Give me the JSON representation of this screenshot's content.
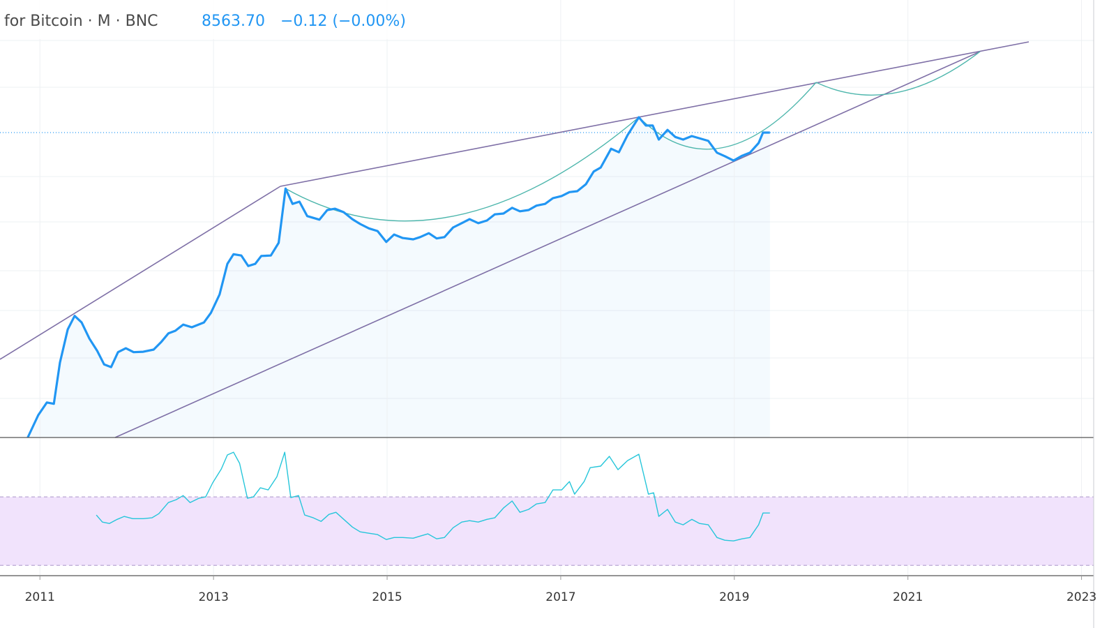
{
  "header": {
    "title": "for Bitcoin · M · BNC",
    "last": "8563.70",
    "change": "−0.12 (−0.00%)"
  },
  "chart_data": [
    {
      "type": "line",
      "color": "#2196f3",
      "fill": true,
      "xlim": [
        2010.54,
        2023.14
      ],
      "ylim": [
        0,
        100
      ],
      "x": [
        2010.86,
        2010.98,
        2011.08,
        2011.16,
        2011.23,
        2011.32,
        2011.4,
        2011.48,
        2011.57,
        2011.66,
        2011.74,
        2011.82,
        2011.9,
        2011.99,
        2012.08,
        2012.19,
        2012.31,
        2012.4,
        2012.48,
        2012.56,
        2012.65,
        2012.75,
        2012.89,
        2012.97,
        2013.07,
        2013.16,
        2013.23,
        2013.32,
        2013.4,
        2013.48,
        2013.55,
        2013.66,
        2013.75,
        2013.83,
        2013.91,
        2013.99,
        2014.08,
        2014.22,
        2014.31,
        2014.4,
        2014.5,
        2014.6,
        2014.69,
        2014.79,
        2014.89,
        2014.99,
        2015.08,
        2015.18,
        2015.3,
        2015.38,
        2015.48,
        2015.57,
        2015.66,
        2015.76,
        2015.86,
        2015.95,
        2016.05,
        2016.15,
        2016.24,
        2016.34,
        2016.44,
        2016.53,
        2016.63,
        2016.72,
        2016.82,
        2016.91,
        2017.01,
        2017.1,
        2017.19,
        2017.29,
        2017.38,
        2017.46,
        2017.58,
        2017.67,
        2017.77,
        2017.9,
        2017.98,
        2018.06,
        2018.13,
        2018.23,
        2018.32,
        2018.41,
        2018.51,
        2018.7,
        2018.8,
        2018.89,
        2018.99,
        2019.09,
        2019.18,
        2019.28,
        2019.33,
        2019.41
      ],
      "values": [
        0.0,
        5.1,
        8.0,
        7.7,
        17.1,
        24.7,
        27.8,
        26.3,
        22.6,
        19.8,
        16.7,
        16.1,
        19.5,
        20.4,
        19.5,
        19.6,
        20.1,
        21.9,
        23.8,
        24.4,
        25.8,
        25.2,
        26.3,
        28.5,
        32.7,
        39.7,
        41.9,
        41.6,
        39.2,
        39.7,
        41.5,
        41.6,
        44.5,
        56.9,
        53.4,
        53.9,
        50.6,
        49.8,
        52.0,
        52.3,
        51.5,
        49.9,
        48.8,
        47.8,
        47.2,
        44.7,
        46.4,
        45.6,
        45.3,
        45.8,
        46.7,
        45.5,
        45.8,
        48.0,
        49.0,
        49.9,
        49.0,
        49.6,
        51.0,
        51.2,
        52.5,
        51.7,
        52.0,
        53.0,
        53.4,
        54.7,
        55.2,
        56.1,
        56.3,
        57.9,
        60.8,
        61.7,
        66.0,
        65.2,
        69.1,
        73.2,
        71.3,
        71.3,
        68.1,
        70.3,
        68.7,
        68.1,
        68.9,
        67.8,
        65.1,
        64.3,
        63.3,
        64.4,
        65.1,
        67.3,
        69.7,
        69.7
      ]
    },
    {
      "type": "line",
      "color": "#26c6da",
      "xlim": [
        2010.54,
        2023.14
      ],
      "ylim": [
        24,
        104.7
      ],
      "bands": [
        30,
        70
      ],
      "band_color": "#f1e3fc",
      "xticks": [
        2011,
        2013,
        2015,
        2017,
        2019,
        2021,
        2023
      ],
      "x": [
        2011.65,
        2011.72,
        2011.8,
        2011.89,
        2011.97,
        2012.07,
        2012.19,
        2012.29,
        2012.37,
        2012.48,
        2012.57,
        2012.65,
        2012.73,
        2012.83,
        2012.91,
        2012.99,
        2013.09,
        2013.16,
        2013.23,
        2013.3,
        2013.39,
        2013.46,
        2013.54,
        2013.63,
        2013.73,
        2013.82,
        2013.89,
        2013.98,
        2014.05,
        2014.15,
        2014.24,
        2014.33,
        2014.41,
        2014.51,
        2014.6,
        2014.69,
        2014.79,
        2014.89,
        2014.99,
        2015.08,
        2015.18,
        2015.3,
        2015.38,
        2015.47,
        2015.57,
        2015.66,
        2015.76,
        2015.86,
        2015.95,
        2016.05,
        2016.15,
        2016.24,
        2016.34,
        2016.44,
        2016.53,
        2016.63,
        2016.72,
        2016.82,
        2016.91,
        2017.01,
        2017.1,
        2017.16,
        2017.27,
        2017.34,
        2017.46,
        2017.56,
        2017.66,
        2017.77,
        2017.9,
        2018.01,
        2018.07,
        2018.13,
        2018.23,
        2018.32,
        2018.41,
        2018.51,
        2018.6,
        2018.7,
        2018.8,
        2018.89,
        2018.99,
        2019.09,
        2019.18,
        2019.28,
        2019.33,
        2019.41
      ],
      "values": [
        59.4,
        55.3,
        54.5,
        56.9,
        58.6,
        57.3,
        57.3,
        57.8,
        60.2,
        66.7,
        68.4,
        70.8,
        66.7,
        69.2,
        70.0,
        78.2,
        86.3,
        94.5,
        96.1,
        89.6,
        69.2,
        70.0,
        75.3,
        74.1,
        81.8,
        96.1,
        69.6,
        70.8,
        59.4,
        57.8,
        55.7,
        59.8,
        61.0,
        56.5,
        52.4,
        49.6,
        48.8,
        48.0,
        45.1,
        46.3,
        46.3,
        45.9,
        47.1,
        48.4,
        45.5,
        46.3,
        52.0,
        55.3,
        56.1,
        55.3,
        56.9,
        57.8,
        63.5,
        67.6,
        61.0,
        62.7,
        65.9,
        66.7,
        74.1,
        74.1,
        79.0,
        71.6,
        79.0,
        87.1,
        88.0,
        93.7,
        85.9,
        91.2,
        94.9,
        71.6,
        72.4,
        58.6,
        62.7,
        55.3,
        53.7,
        56.9,
        54.5,
        53.7,
        46.3,
        44.7,
        44.3,
        45.5,
        46.3,
        53.7,
        60.6,
        60.6
      ]
    }
  ]
}
